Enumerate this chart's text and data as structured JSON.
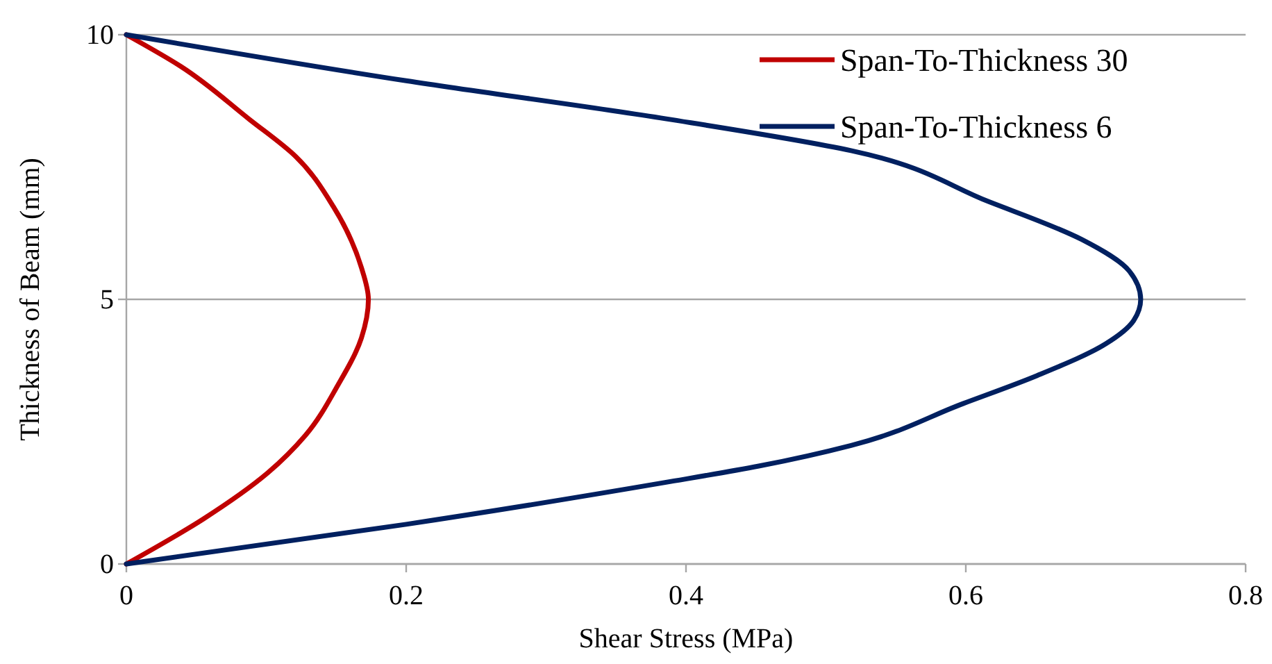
{
  "chart_data": {
    "type": "line",
    "xlabel": "Shear Stress (MPa)",
    "ylabel": "Thickness of Beam (mm)",
    "xlim": [
      0,
      0.8
    ],
    "xticks": [
      0,
      0.2,
      0.4,
      0.6,
      0.8
    ],
    "ylim": [
      0,
      10
    ],
    "yticks": [
      0,
      5,
      10
    ],
    "grid": "y",
    "legend": "top right",
    "series": [
      {
        "name": "Span-To-Thickness 30",
        "color": "#c00000",
        "x": [
          0,
          0.055,
          0.101,
          0.128,
          0.151,
          0.168,
          0.173,
          0.168,
          0.148,
          0.121,
          0.088,
          0.039,
          0
        ],
        "values": [
          0,
          0.85,
          1.72,
          2.43,
          3.37,
          4.27,
          5,
          5.6,
          6.75,
          7.7,
          8.4,
          9.4,
          10
        ]
      },
      {
        "name": "Span-To-Thickness 6",
        "color": "#002060",
        "x": [
          0,
          0.2,
          0.385,
          0.452,
          0.518,
          0.598,
          0.651,
          0.7,
          0.72,
          0.725,
          0.717,
          0.683,
          0.617,
          0.518,
          0.386,
          0.2,
          0
        ],
        "values": [
          0,
          0.75,
          1.54,
          1.85,
          2.24,
          3.03,
          3.56,
          4.16,
          4.6,
          5,
          5.53,
          6.13,
          6.84,
          7.81,
          8.41,
          9.13,
          10
        ]
      }
    ]
  }
}
